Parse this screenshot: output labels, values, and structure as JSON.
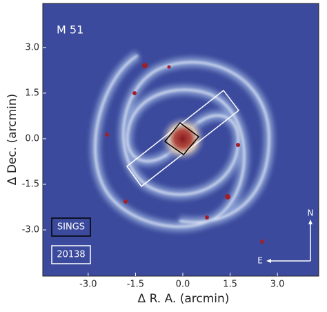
{
  "chart_data": {
    "type": "image",
    "title": "M 51",
    "xlabel": "Δ R. A. (arcmin)",
    "ylabel": "Δ Dec. (arcmin)",
    "xlim": [
      -4.44,
      4.31
    ],
    "ylim": [
      -4.52,
      4.45
    ],
    "xticks": [
      {
        "value": -3,
        "label": "-3.0"
      },
      {
        "value": -1.5,
        "label": "-1.5"
      },
      {
        "value": 0,
        "label": "0.0"
      },
      {
        "value": 1.5,
        "label": "1.5"
      },
      {
        "value": 3,
        "label": "3.0"
      }
    ],
    "yticks": [
      {
        "value": -3,
        "label": "-3.0"
      },
      {
        "value": -1.5,
        "label": "-1.5"
      },
      {
        "value": 0,
        "label": "0.0"
      },
      {
        "value": 1.5,
        "label": "1.5"
      },
      {
        "value": 3,
        "label": "3.0"
      }
    ],
    "legend": [
      "SINGS",
      "20138"
    ],
    "compass": {
      "north": "N",
      "east": "E"
    }
  }
}
